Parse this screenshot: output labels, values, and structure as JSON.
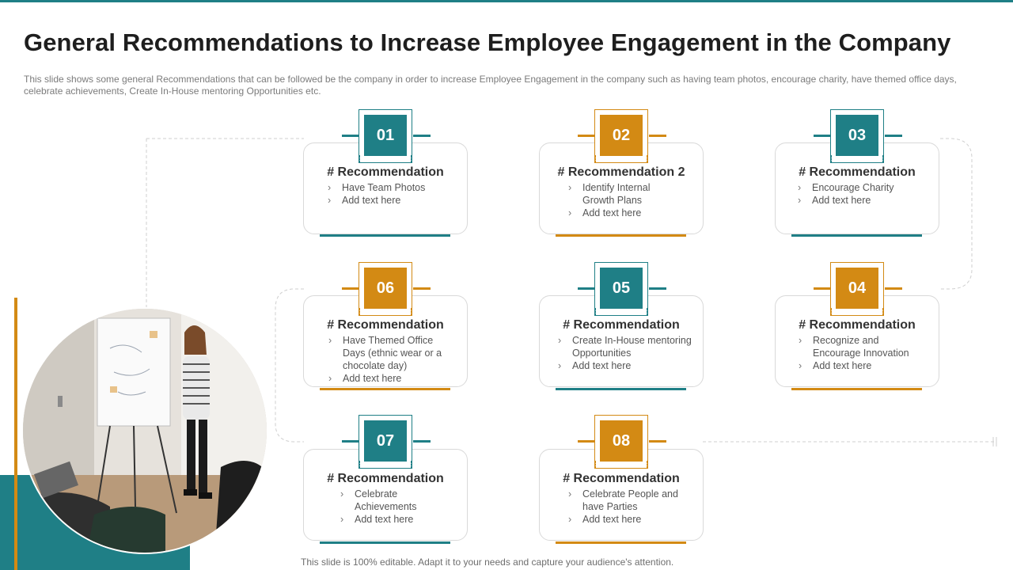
{
  "page": {
    "title": "General Recommendations to Increase Employee Engagement in the Company",
    "subtitle": "This slide shows some general Recommendations that can be followed  be the company in order to increase Employee Engagement in the company such as having team photos, encourage charity, have themed office days, celebrate achievements, Create In-House  mentoring Opportunities etc.",
    "footer": "This slide is 100% editable. Adapt it to your needs and capture your audience's attention."
  },
  "colors": {
    "teal": "#1f7f86",
    "gold": "#d38a14"
  },
  "cards": [
    {
      "number": "01",
      "color": "teal",
      "title": "# Recommendation",
      "items": [
        "Have  Team Photos",
        "Add text here"
      ]
    },
    {
      "number": "02",
      "color": "gold",
      "title": "# Recommendation 2",
      "items": [
        "Identify Internal Growth Plans",
        "Add text here"
      ]
    },
    {
      "number": "03",
      "color": "teal",
      "title": "# Recommendation",
      "items": [
        "Encourage Charity",
        "Add text here"
      ]
    },
    {
      "number": "06",
      "color": "gold",
      "title": "# Recommendation",
      "items": [
        "Have Themed Office Days (ethnic wear or a chocolate day)",
        "Add text here"
      ]
    },
    {
      "number": "05",
      "color": "teal",
      "title": "# Recommendation",
      "items": [
        "Create In-House mentoring Opportunities",
        "Add text here"
      ]
    },
    {
      "number": "04",
      "color": "gold",
      "title": "# Recommendation",
      "items": [
        "Recognize and Encourage Innovation",
        "Add text here"
      ]
    },
    {
      "number": "07",
      "color": "teal",
      "title": "# Recommendation",
      "items": [
        "Celebrate Achievements",
        "Add text here"
      ]
    },
    {
      "number": "08",
      "color": "gold",
      "title": "# Recommendation",
      "items": [
        "Celebrate People and have Parties",
        "Add text here"
      ]
    }
  ]
}
